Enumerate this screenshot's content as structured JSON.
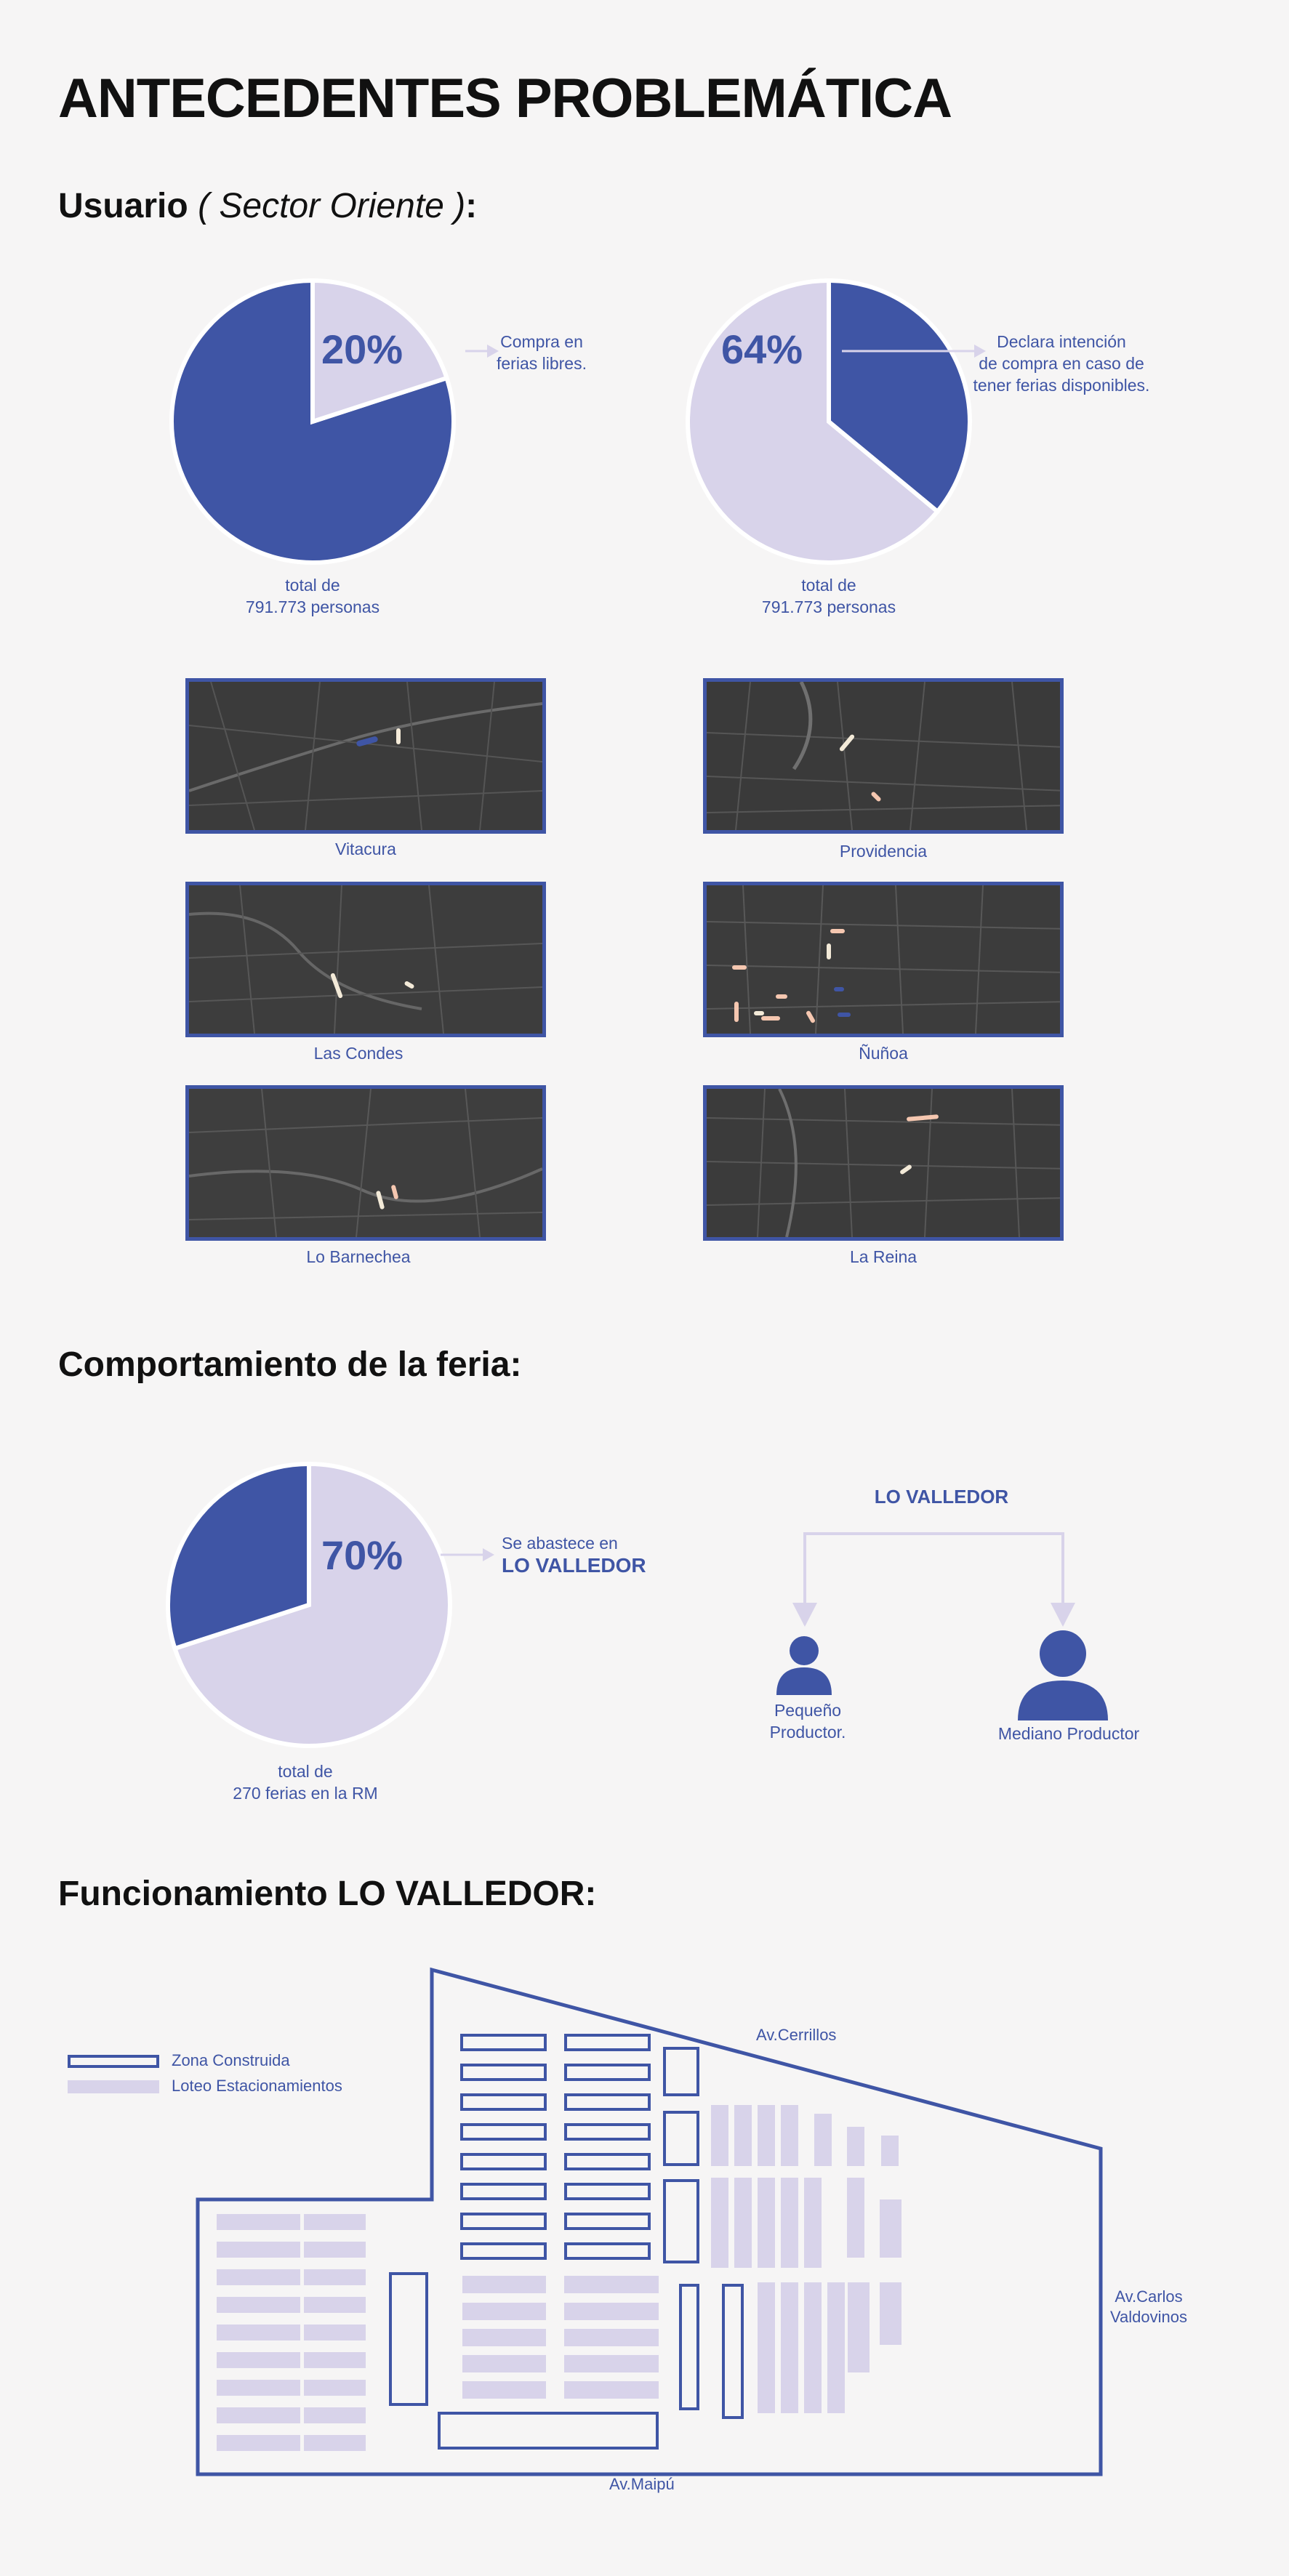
{
  "title": "ANTECEDENTES PROBLEMÁTICA",
  "section_usuario": {
    "label": "Usuario",
    "sector": "( Sector Oriente )",
    "colon": ":"
  },
  "pie1": {
    "percent": "20%",
    "value": 20,
    "note_line1": "Compra en",
    "note_line2": "ferias libres.",
    "total_line1": "total de",
    "total_line2": "791.773 personas"
  },
  "pie2": {
    "percent": "64%",
    "value": 64,
    "note_line1": "Declara intención",
    "note_line2": "de compra en caso de",
    "note_line3": "tener ferias disponibles.",
    "total_line1": "total de",
    "total_line2": "791.773 personas"
  },
  "maps": [
    {
      "name": "Vitacura"
    },
    {
      "name": "Providencia"
    },
    {
      "name": "Las Condes"
    },
    {
      "name": "Ñuñoa"
    },
    {
      "name": "Lo Barnechea"
    },
    {
      "name": "La Reina"
    }
  ],
  "section_comportamiento": "Comportamiento de la feria:",
  "pie3": {
    "percent": "70%",
    "value": 70,
    "note_line1": "Se abastece en",
    "note_line2": "LO VALLEDOR",
    "total_line1": "total de",
    "total_line2": "270 ferias en la RM"
  },
  "diagram": {
    "source": "LO VALLEDOR",
    "small_line1": "Pequeño",
    "small_line2": "Productor.",
    "medium": "Mediano Productor"
  },
  "section_funcionamiento": "Funcionamiento LO VALLEDOR:",
  "legend": {
    "built": "Zona Construida",
    "parking": "Loteo Estacionamientos"
  },
  "streets": {
    "cerrillos": "Av.Cerrillos",
    "carlos_line1": "Av.Carlos",
    "carlos_line2": "Valdovinos",
    "maipu": "Av.Maipú"
  },
  "colors": {
    "primary": "#3f55a5",
    "light": "#d8d3ea",
    "background": "#f6f5f5",
    "map_dark": "#3a3a3a"
  }
}
